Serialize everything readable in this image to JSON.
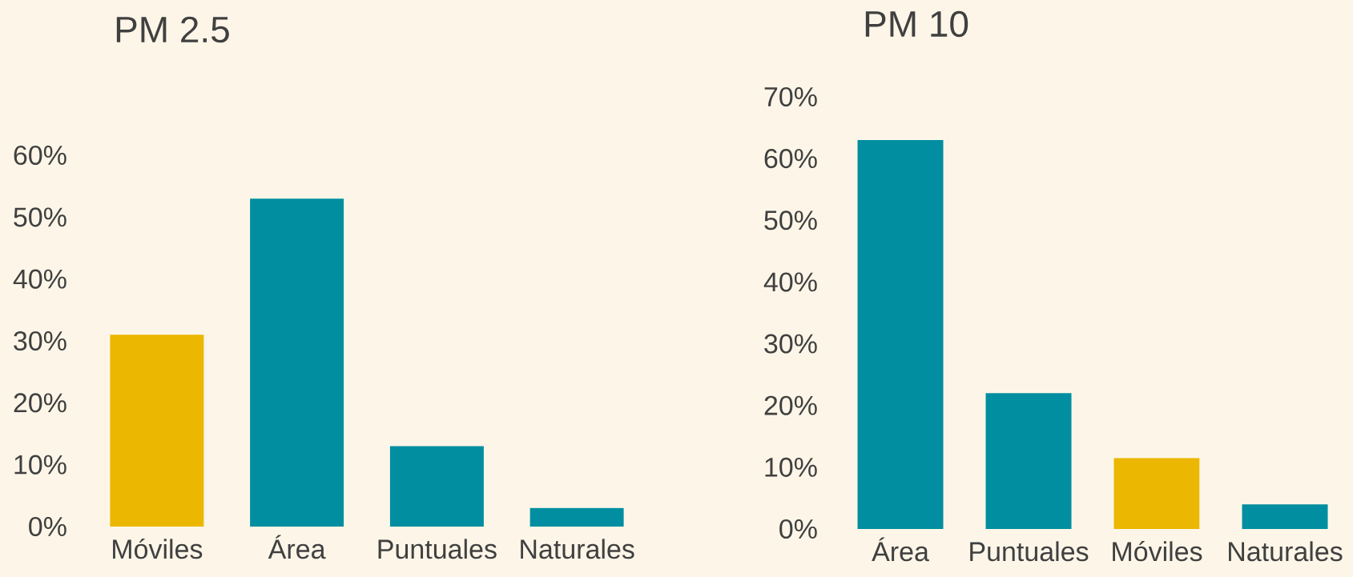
{
  "chart_data": [
    {
      "type": "bar",
      "title": "PM 2.5",
      "categories": [
        "Móviles",
        "Área",
        "Puntuales",
        "Naturales"
      ],
      "values": [
        31,
        53,
        13,
        3
      ],
      "colors": [
        "#ebb700",
        "#008ea0",
        "#008ea0",
        "#008ea0"
      ],
      "ylim": [
        0,
        60
      ],
      "yticks": [
        {
          "value": 0,
          "label": "0%"
        },
        {
          "value": 10,
          "label": "10%"
        },
        {
          "value": 20,
          "label": "20%"
        },
        {
          "value": 30,
          "label": "30%"
        },
        {
          "value": 40,
          "label": "40%"
        },
        {
          "value": 50,
          "label": "50%"
        },
        {
          "value": 60,
          "label": "60%"
        }
      ],
      "grid": false
    },
    {
      "type": "bar",
      "title": "PM 10",
      "categories": [
        "Área",
        "Puntuales",
        "Móviles",
        "Naturales"
      ],
      "values": [
        63,
        22,
        11.5,
        4
      ],
      "colors": [
        "#008ea0",
        "#008ea0",
        "#ebb700",
        "#008ea0"
      ],
      "ylim": [
        0,
        70
      ],
      "yticks": [
        {
          "value": 0,
          "label": "0%"
        },
        {
          "value": 10,
          "label": "10%"
        },
        {
          "value": 20,
          "label": "20%"
        },
        {
          "value": 30,
          "label": "30%"
        },
        {
          "value": 40,
          "label": "40%"
        },
        {
          "value": 50,
          "label": "50%"
        },
        {
          "value": 60,
          "label": "60%"
        },
        {
          "value": 70,
          "label": "70%"
        }
      ],
      "grid": false
    }
  ]
}
